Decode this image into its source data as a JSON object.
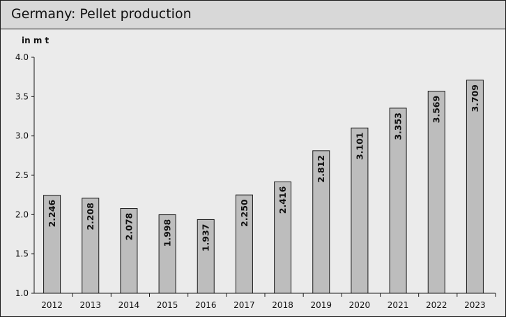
{
  "header": {
    "title": "Germany: Pellet production"
  },
  "colors": {
    "background": "#ebebeb",
    "header": "#d8d8d8",
    "bar_fill": "#bdbdbd",
    "bar_stroke": "#1a1a1a",
    "text": "#111111"
  },
  "chart_data": {
    "type": "bar",
    "title": "Germany: Pellet production",
    "unit_label": "in m t",
    "xlabel": "",
    "ylabel": "in m t",
    "categories": [
      "2012",
      "2013",
      "2014",
      "2015",
      "2016",
      "2017",
      "2018",
      "2019",
      "2020",
      "2021",
      "2022",
      "2023"
    ],
    "values": [
      2.246,
      2.208,
      2.078,
      1.998,
      1.937,
      2.25,
      2.416,
      2.812,
      3.101,
      3.353,
      3.569,
      3.709
    ],
    "value_labels": [
      "2.246",
      "2.208",
      "2.078",
      "1.998",
      "1.937",
      "2.250",
      "2.416",
      "2.812",
      "3.101",
      "3.353",
      "3.569",
      "3.709"
    ],
    "ylim": [
      1.0,
      4.0
    ],
    "yticks": [
      "1.0",
      "1.5",
      "2.0",
      "2.5",
      "3.0",
      "3.5",
      "4.0"
    ],
    "grid": false,
    "legend": "none"
  }
}
